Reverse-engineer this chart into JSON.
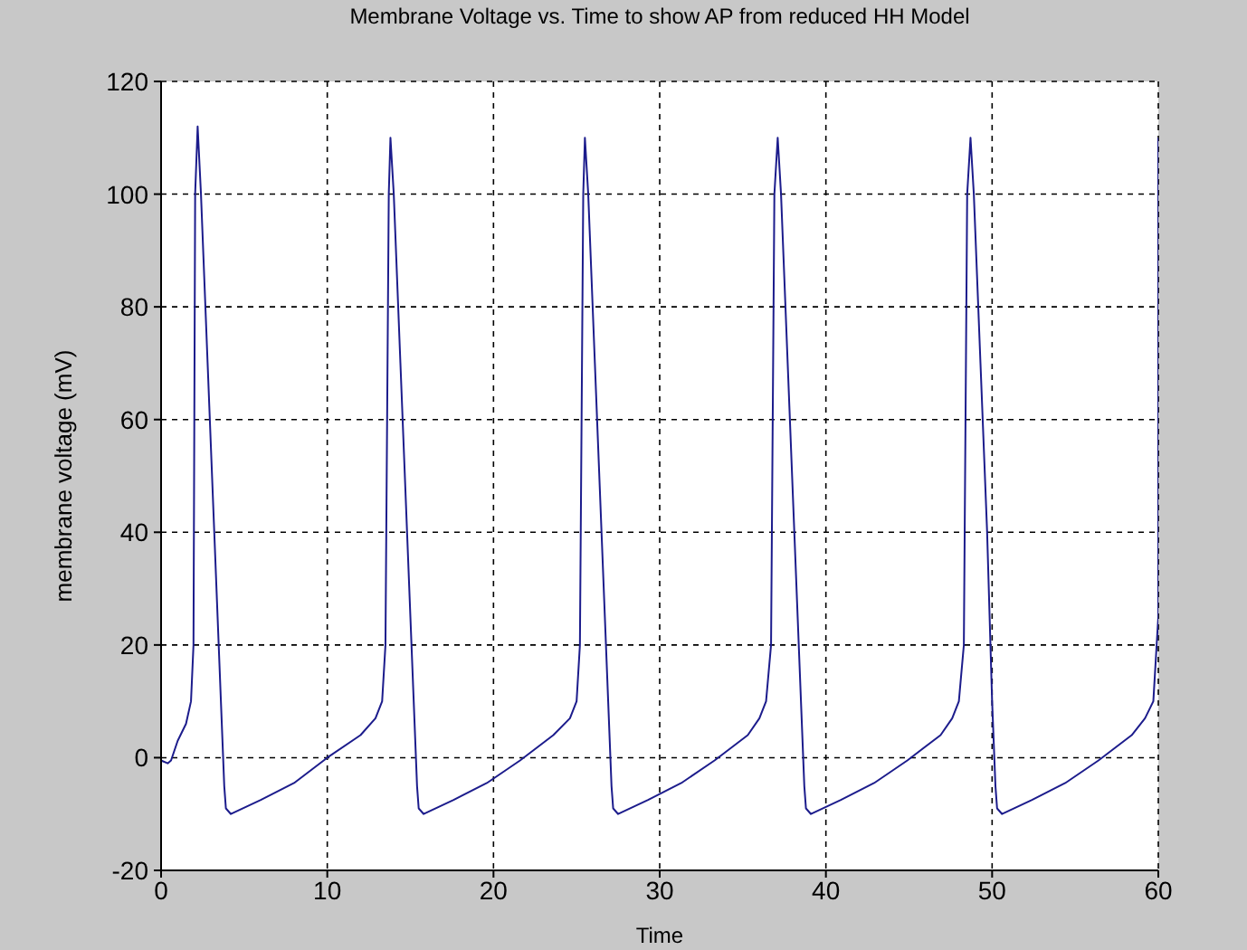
{
  "chart_data": {
    "type": "line",
    "title": "Membrane Voltage vs. Time to show AP from reduced HH Model",
    "xlabel": "Time",
    "ylabel": "membrane voltage (mV)",
    "xlim": [
      0,
      60
    ],
    "xticks": [
      0,
      10,
      20,
      30,
      40,
      50,
      60
    ],
    "ylim": [
      -20,
      120
    ],
    "yticks": [
      -20,
      0,
      20,
      40,
      60,
      80,
      100,
      120
    ],
    "grid": true,
    "series": [
      {
        "color": "#1c1c8c",
        "x": [
          0,
          0.4,
          0.6,
          1.0,
          1.5,
          1.8,
          1.95,
          2.0,
          2.05,
          2.2,
          2.4,
          2.8,
          3.2,
          3.6,
          3.8,
          3.9,
          4.2,
          6,
          8,
          10,
          12,
          12.9,
          13.3,
          13.5,
          13.6,
          13.7,
          13.8,
          14.0,
          14.4,
          14.8,
          15.2,
          15.4,
          15.5,
          15.8,
          17.6,
          19.6,
          21.6,
          23.6,
          24.6,
          25,
          25.2,
          25.3,
          25.4,
          25.5,
          25.7,
          26.1,
          26.5,
          26.9,
          27.1,
          27.2,
          27.5,
          29.3,
          31.3,
          33.3,
          35.3,
          36.0,
          36.4,
          36.7,
          36.8,
          36.9,
          37.1,
          37.3,
          37.7,
          38.1,
          38.5,
          38.7,
          38.8,
          39.1,
          40.9,
          42.9,
          44.9,
          46.9,
          47.6,
          48.0,
          48.3,
          48.4,
          48.5,
          48.7,
          48.9,
          49.3,
          49.7,
          50.0,
          50.2,
          50.3,
          50.6,
          52.4,
          54.4,
          56.4,
          58.4,
          59.2,
          59.7,
          59.9,
          60,
          60
        ],
        "values": [
          -0.5,
          -1,
          -0.5,
          3,
          6,
          10,
          20,
          60,
          100,
          112,
          100,
          70,
          40,
          10,
          -5,
          -9,
          -10,
          -7.5,
          -4.5,
          0,
          4,
          7,
          10,
          20,
          60,
          100,
          110,
          100,
          70,
          40,
          10,
          -5,
          -9,
          -10,
          -7.5,
          -4.5,
          -0.5,
          4,
          7,
          10,
          20,
          60,
          100,
          110,
          100,
          70,
          40,
          10,
          -5,
          -9,
          -10,
          -7.5,
          -4.5,
          -0.5,
          4,
          7,
          10,
          20,
          60,
          100,
          110,
          100,
          70,
          40,
          10,
          -5,
          -9,
          -10,
          -7.5,
          -4.5,
          -0.5,
          4,
          7,
          10,
          20,
          60,
          100,
          110,
          100,
          70,
          40,
          10,
          -5,
          -9,
          -10,
          -7.5,
          -4.5,
          -0.5,
          4,
          7,
          10,
          20,
          25,
          110
        ]
      }
    ]
  }
}
